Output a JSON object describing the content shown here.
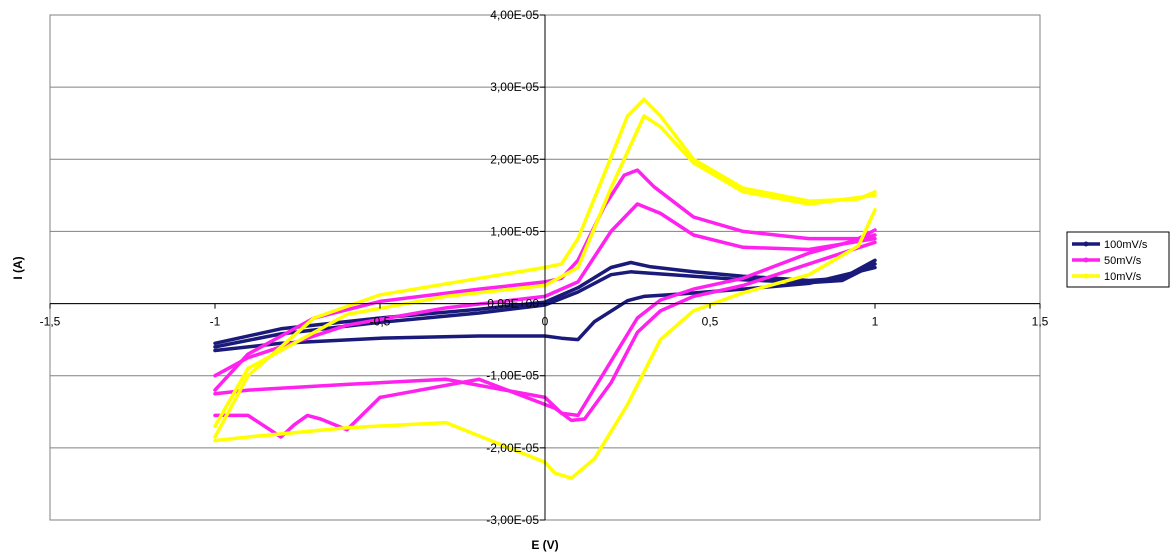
{
  "chart_data": {
    "type": "scatter",
    "title": "",
    "xlabel": "E (V)",
    "ylabel": "I (A)",
    "xlim": [
      -1.5,
      1.5
    ],
    "ylim": [
      -3e-05,
      4e-05
    ],
    "x_ticks": [
      -1.5,
      -1,
      -0.5,
      0,
      0.5,
      1,
      1.5
    ],
    "x_tick_labels": [
      "-1,5",
      "-1",
      "-0,5",
      "0",
      "0,5",
      "1",
      "1,5"
    ],
    "y_ticks": [
      -3e-05,
      -2e-05,
      -1e-05,
      0,
      1e-05,
      2e-05,
      3e-05,
      4e-05
    ],
    "y_tick_labels": [
      "-3,00E-05",
      "-2,00E-05",
      "-1,00E-05",
      "0,00E+00",
      "1,00E-05",
      "2,00E-05",
      "3,00E-05",
      "4,00E-05"
    ],
    "grid": "horizontal",
    "legend_position": "right",
    "series": [
      {
        "name": "100mV/s",
        "color": "#1a1a7a",
        "traces": [
          {
            "x": [
              -1.0,
              -0.8,
              -0.5,
              -0.2,
              0.0,
              0.1,
              0.2,
              0.26,
              0.32,
              0.45,
              0.6,
              0.8,
              0.9,
              1.0
            ],
            "y": [
              -5.5e-06,
              -3.5e-06,
              -2e-06,
              -8e-07,
              2e-07,
              2.2e-06,
              5e-06,
              5.7e-06,
              5.1e-06,
              4.4e-06,
              3.8e-06,
              3.2e-06,
              3.5e-06,
              6e-06
            ]
          },
          {
            "x": [
              1.0,
              0.8,
              0.6,
              0.4,
              0.3,
              0.25,
              0.15,
              0.1,
              0.05,
              0.0,
              -0.2,
              -0.5,
              -0.8,
              -1.0
            ],
            "y": [
              5e-06,
              2.8e-06,
              2e-06,
              1.3e-06,
              1e-06,
              4e-07,
              -2.5e-06,
              -5e-06,
              -4.8e-06,
              -4.5e-06,
              -4.5e-06,
              -4.8e-06,
              -5.5e-06,
              -6.5e-06
            ]
          },
          {
            "x": [
              -1.0,
              -0.8,
              -0.5,
              -0.2,
              0.0,
              0.1,
              0.2,
              0.26,
              0.32,
              0.45,
              0.6,
              0.8,
              0.9,
              1.0
            ],
            "y": [
              -6e-06,
              -4.2e-06,
              -2.6e-06,
              -1.3e-06,
              -2e-07,
              1.6e-06,
              4e-06,
              4.4e-06,
              4.2e-06,
              3.8e-06,
              3.3e-06,
              2.9e-06,
              3.2e-06,
              5.5e-06
            ]
          }
        ]
      },
      {
        "name": "50mV/s",
        "color": "#ff22ee",
        "traces": [
          {
            "x": [
              -1.0,
              -0.9,
              -0.7,
              -0.5,
              -0.2,
              0.0,
              0.05,
              0.1,
              0.18,
              0.24,
              0.28,
              0.33,
              0.45,
              0.6,
              0.8,
              0.95,
              1.0
            ],
            "y": [
              -1.2e-05,
              -7e-06,
              -2e-06,
              3e-07,
              2e-06,
              3e-06,
              3.5e-06,
              6e-06,
              1.35e-05,
              1.78e-05,
              1.85e-05,
              1.62e-05,
              1.2e-05,
              1e-05,
              9e-06,
              9e-06,
              1.02e-05
            ]
          },
          {
            "x": [
              1.0,
              0.8,
              0.6,
              0.45,
              0.35,
              0.28,
              0.2,
              0.1,
              0.05,
              0.0,
              -0.3,
              -0.6,
              -0.9,
              -1.0
            ],
            "y": [
              9.5e-06,
              7e-06,
              3.5e-06,
              2e-06,
              5e-07,
              -2e-06,
              -8e-06,
              -1.55e-05,
              -1.52e-05,
              -1.3e-05,
              -1.05e-05,
              -1.12e-05,
              -1.2e-05,
              -1.25e-05
            ]
          },
          {
            "x": [
              -1.0,
              -0.9,
              -0.6,
              -0.3,
              0.0,
              0.1,
              0.2,
              0.28,
              0.35,
              0.45,
              0.6,
              0.8,
              1.0
            ],
            "y": [
              -1e-05,
              -7.5e-06,
              -3e-06,
              -6e-07,
              1e-06,
              3e-06,
              1e-05,
              1.38e-05,
              1.25e-05,
              9.5e-06,
              7.8e-06,
              7.5e-06,
              9e-06
            ]
          },
          {
            "x": [
              1.0,
              0.8,
              0.6,
              0.45,
              0.35,
              0.28,
              0.2,
              0.12,
              0.08,
              0.03,
              -0.2,
              -0.5,
              -0.6,
              -0.68,
              -0.72,
              -0.76,
              -0.8,
              -0.9,
              -1.0
            ],
            "y": [
              8.5e-06,
              5.5e-06,
              2.5e-06,
              1e-06,
              -1e-06,
              -4e-06,
              -1.1e-05,
              -1.6e-05,
              -1.62e-05,
              -1.45e-05,
              -1.05e-05,
              -1.3e-05,
              -1.75e-05,
              -1.6e-05,
              -1.55e-05,
              -1.68e-05,
              -1.85e-05,
              -1.55e-05,
              -1.55e-05
            ]
          }
        ]
      },
      {
        "name": "10mV/s",
        "color": "#ffff00",
        "traces": [
          {
            "x": [
              -1.0,
              -0.9,
              -0.7,
              -0.5,
              -0.2,
              0.0,
              0.05,
              0.1,
              0.18,
              0.25,
              0.3,
              0.35,
              0.45,
              0.6,
              0.8,
              0.95,
              1.0
            ],
            "y": [
              -1.85e-05,
              -1e-05,
              -2e-06,
              1.2e-06,
              3.5e-06,
              5e-06,
              5.5e-06,
              9e-06,
              1.8e-05,
              2.6e-05,
              2.83e-05,
              2.6e-05,
              2e-05,
              1.6e-05,
              1.42e-05,
              1.45e-05,
              1.55e-05
            ]
          },
          {
            "x": [
              1.0,
              0.95,
              0.8,
              0.6,
              0.45,
              0.35,
              0.25,
              0.15,
              0.08,
              0.03,
              0.0,
              -0.3,
              -0.6,
              -0.9,
              -1.0
            ],
            "y": [
              1.3e-05,
              8e-06,
              4e-06,
              1.5e-06,
              -1e-06,
              -5e-06,
              -1.4e-05,
              -2.15e-05,
              -2.42e-05,
              -2.35e-05,
              -2.2e-05,
              -1.65e-05,
              -1.72e-05,
              -1.85e-05,
              -1.9e-05
            ]
          },
          {
            "x": [
              -1.0,
              -0.9,
              -0.6,
              -0.3,
              0.0,
              0.1,
              0.2,
              0.3,
              0.35,
              0.45,
              0.6,
              0.8,
              1.0
            ],
            "y": [
              -1.7e-05,
              -9e-06,
              -1.5e-06,
              1e-06,
              2.5e-06,
              5e-06,
              1.6e-05,
              2.6e-05,
              2.45e-05,
              1.95e-05,
              1.55e-05,
              1.38e-05,
              1.5e-05
            ]
          }
        ]
      }
    ]
  }
}
